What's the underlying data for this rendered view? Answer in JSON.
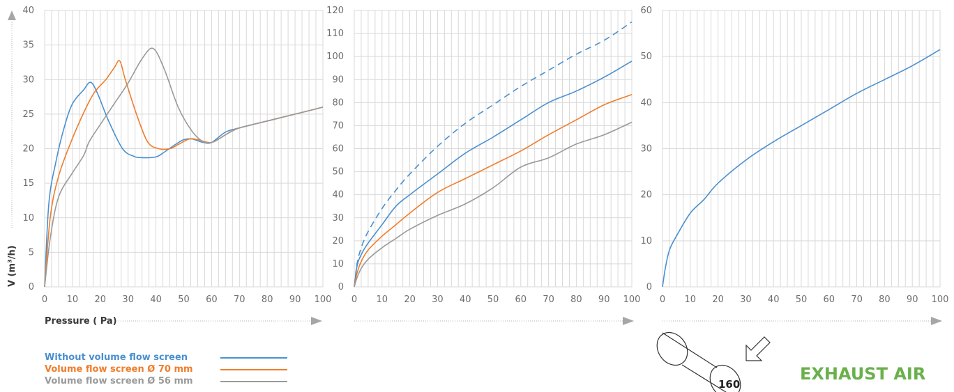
{
  "colors": {
    "blue": "#4a90d0",
    "orange": "#f07d2a",
    "gray": "#9a9a9a",
    "green": "#6ab04c",
    "grid": "#d9d9d9",
    "axis_text": "#6e6e6e"
  },
  "y_axis_label": "V (m³/h)",
  "x_axis_label": "Pressure ( Pa)",
  "legend": [
    {
      "label": "Without volume flow screen",
      "color": "#4a90d0"
    },
    {
      "label": "Volume flow screen Ø 70 mm",
      "color": "#f07d2a"
    },
    {
      "label": "Volume flow screen Ø 56 mm",
      "color": "#9a9a9a"
    }
  ],
  "duct_label": "160",
  "duct_icon": "cylinder-duct-icon",
  "arrow_icon": "arrow-down-left-icon",
  "exhaust_label": "EXHAUST AIR",
  "chart_data": [
    {
      "type": "line",
      "xlim": [
        0,
        100
      ],
      "ylim": [
        0,
        40
      ],
      "x_ticks": [
        0,
        10,
        20,
        30,
        40,
        50,
        60,
        70,
        80,
        90,
        100
      ],
      "y_ticks": [
        0,
        5,
        10,
        15,
        20,
        25,
        30,
        35,
        40
      ],
      "grid": true,
      "series": [
        {
          "name": "Without volume flow screen",
          "color": "#4a90d0",
          "style": "solid",
          "points": [
            [
              0,
              0
            ],
            [
              1.5,
              12
            ],
            [
              4,
              18
            ],
            [
              7,
              23
            ],
            [
              10,
              26.5
            ],
            [
              14,
              28.5
            ],
            [
              16.5,
              29.6
            ],
            [
              19,
              28
            ],
            [
              23,
              24
            ],
            [
              28,
              20
            ],
            [
              32,
              18.9
            ],
            [
              35,
              18.7
            ],
            [
              40,
              18.8
            ],
            [
              43,
              19.5
            ],
            [
              47,
              20.6
            ],
            [
              50,
              21.3
            ],
            [
              53,
              21.4
            ],
            [
              57,
              20.9
            ],
            [
              60,
              20.9
            ],
            [
              65,
              22.4
            ],
            [
              70,
              23
            ],
            [
              80,
              24
            ],
            [
              90,
              25
            ],
            [
              100,
              26
            ]
          ]
        },
        {
          "name": "Volume flow screen Ø 70 mm",
          "color": "#f07d2a",
          "style": "solid",
          "points": [
            [
              0,
              0
            ],
            [
              2,
              10
            ],
            [
              5,
              16
            ],
            [
              10,
              21.5
            ],
            [
              15,
              26
            ],
            [
              18,
              28.2
            ],
            [
              22,
              30
            ],
            [
              25,
              31.7
            ],
            [
              27,
              32.7
            ],
            [
              29,
              30
            ],
            [
              33,
              25
            ],
            [
              37,
              21
            ],
            [
              41,
              20
            ],
            [
              45,
              20
            ],
            [
              48,
              20.6
            ],
            [
              52,
              21.4
            ],
            [
              55,
              21.3
            ],
            [
              60,
              20.9
            ],
            [
              65,
              22
            ],
            [
              70,
              23
            ],
            [
              80,
              24
            ],
            [
              90,
              25
            ],
            [
              100,
              26
            ]
          ]
        },
        {
          "name": "Volume flow screen Ø 56 mm",
          "color": "#9a9a9a",
          "style": "solid",
          "points": [
            [
              0,
              0
            ],
            [
              2,
              7
            ],
            [
              5,
              13
            ],
            [
              10,
              16.5
            ],
            [
              14,
              19
            ],
            [
              16,
              21
            ],
            [
              20,
              23.5
            ],
            [
              25,
              26.5
            ],
            [
              30,
              29.5
            ],
            [
              35,
              33
            ],
            [
              39,
              34.5
            ],
            [
              43,
              31.5
            ],
            [
              48,
              26
            ],
            [
              53,
              22.5
            ],
            [
              57,
              21
            ],
            [
              60,
              20.9
            ],
            [
              63,
              21.5
            ],
            [
              67,
              22.5
            ],
            [
              70,
              23
            ],
            [
              80,
              24
            ],
            [
              90,
              25
            ],
            [
              100,
              26
            ]
          ]
        }
      ]
    },
    {
      "type": "line",
      "xlim": [
        0,
        100
      ],
      "ylim": [
        0,
        120
      ],
      "x_ticks": [
        0,
        10,
        20,
        30,
        40,
        50,
        60,
        70,
        80,
        90,
        100
      ],
      "y_ticks": [
        0,
        10,
        20,
        30,
        40,
        50,
        60,
        70,
        80,
        90,
        100,
        110,
        120
      ],
      "grid": true,
      "series": [
        {
          "color": "#4a90d0",
          "style": "dashed",
          "points": [
            [
              0,
              0
            ],
            [
              1,
              10
            ],
            [
              2.5,
              17
            ],
            [
              5,
              24
            ],
            [
              10,
              34
            ],
            [
              15,
              42
            ],
            [
              20,
              49
            ],
            [
              30,
              61
            ],
            [
              40,
              71
            ],
            [
              50,
              79
            ],
            [
              60,
              87
            ],
            [
              70,
              94
            ],
            [
              80,
              101
            ],
            [
              90,
              107
            ],
            [
              100,
              115
            ]
          ]
        },
        {
          "name": "Without volume flow screen",
          "color": "#4a90d0",
          "style": "solid",
          "points": [
            [
              0,
              0
            ],
            [
              1,
              9
            ],
            [
              2.5,
              14
            ],
            [
              5,
              19
            ],
            [
              10,
              27
            ],
            [
              15,
              35
            ],
            [
              20,
              40
            ],
            [
              30,
              49
            ],
            [
              40,
              58
            ],
            [
              50,
              65
            ],
            [
              60,
              72.5
            ],
            [
              70,
              80
            ],
            [
              80,
              85
            ],
            [
              90,
              91
            ],
            [
              100,
              98
            ]
          ]
        },
        {
          "name": "Volume flow screen Ø 70 mm",
          "color": "#f07d2a",
          "style": "solid",
          "points": [
            [
              0,
              0
            ],
            [
              1,
              6
            ],
            [
              2.5,
              11
            ],
            [
              5,
              16
            ],
            [
              10,
              22
            ],
            [
              15,
              27
            ],
            [
              20,
              32
            ],
            [
              30,
              41
            ],
            [
              40,
              47
            ],
            [
              50,
              53
            ],
            [
              60,
              59
            ],
            [
              70,
              66
            ],
            [
              80,
              72.5
            ],
            [
              90,
              79
            ],
            [
              100,
              83.5
            ]
          ]
        },
        {
          "name": "Volume flow screen Ø 56 mm",
          "color": "#9a9a9a",
          "style": "solid",
          "points": [
            [
              0,
              0
            ],
            [
              1,
              4
            ],
            [
              2.5,
              8
            ],
            [
              5,
              12
            ],
            [
              10,
              17
            ],
            [
              15,
              21
            ],
            [
              20,
              25
            ],
            [
              30,
              31
            ],
            [
              40,
              36
            ],
            [
              50,
              43
            ],
            [
              60,
              52
            ],
            [
              70,
              56
            ],
            [
              80,
              62
            ],
            [
              90,
              66
            ],
            [
              100,
              71.5
            ]
          ]
        }
      ]
    },
    {
      "type": "line",
      "xlim": [
        0,
        100
      ],
      "ylim": [
        0,
        60
      ],
      "x_ticks": [
        0,
        10,
        20,
        30,
        40,
        50,
        60,
        70,
        80,
        90,
        100
      ],
      "y_ticks": [
        0,
        10,
        20,
        30,
        40,
        50,
        60
      ],
      "grid": true,
      "series": [
        {
          "name": "Without volume flow screen",
          "color": "#4a90d0",
          "style": "solid",
          "points": [
            [
              0,
              0
            ],
            [
              1,
              4
            ],
            [
              2.5,
              8
            ],
            [
              5,
              11
            ],
            [
              10,
              16
            ],
            [
              15,
              19
            ],
            [
              20,
              22.5
            ],
            [
              30,
              27.5
            ],
            [
              40,
              31.5
            ],
            [
              50,
              35
            ],
            [
              60,
              38.5
            ],
            [
              70,
              42
            ],
            [
              80,
              45
            ],
            [
              90,
              48
            ],
            [
              100,
              51.5
            ]
          ]
        }
      ]
    }
  ]
}
